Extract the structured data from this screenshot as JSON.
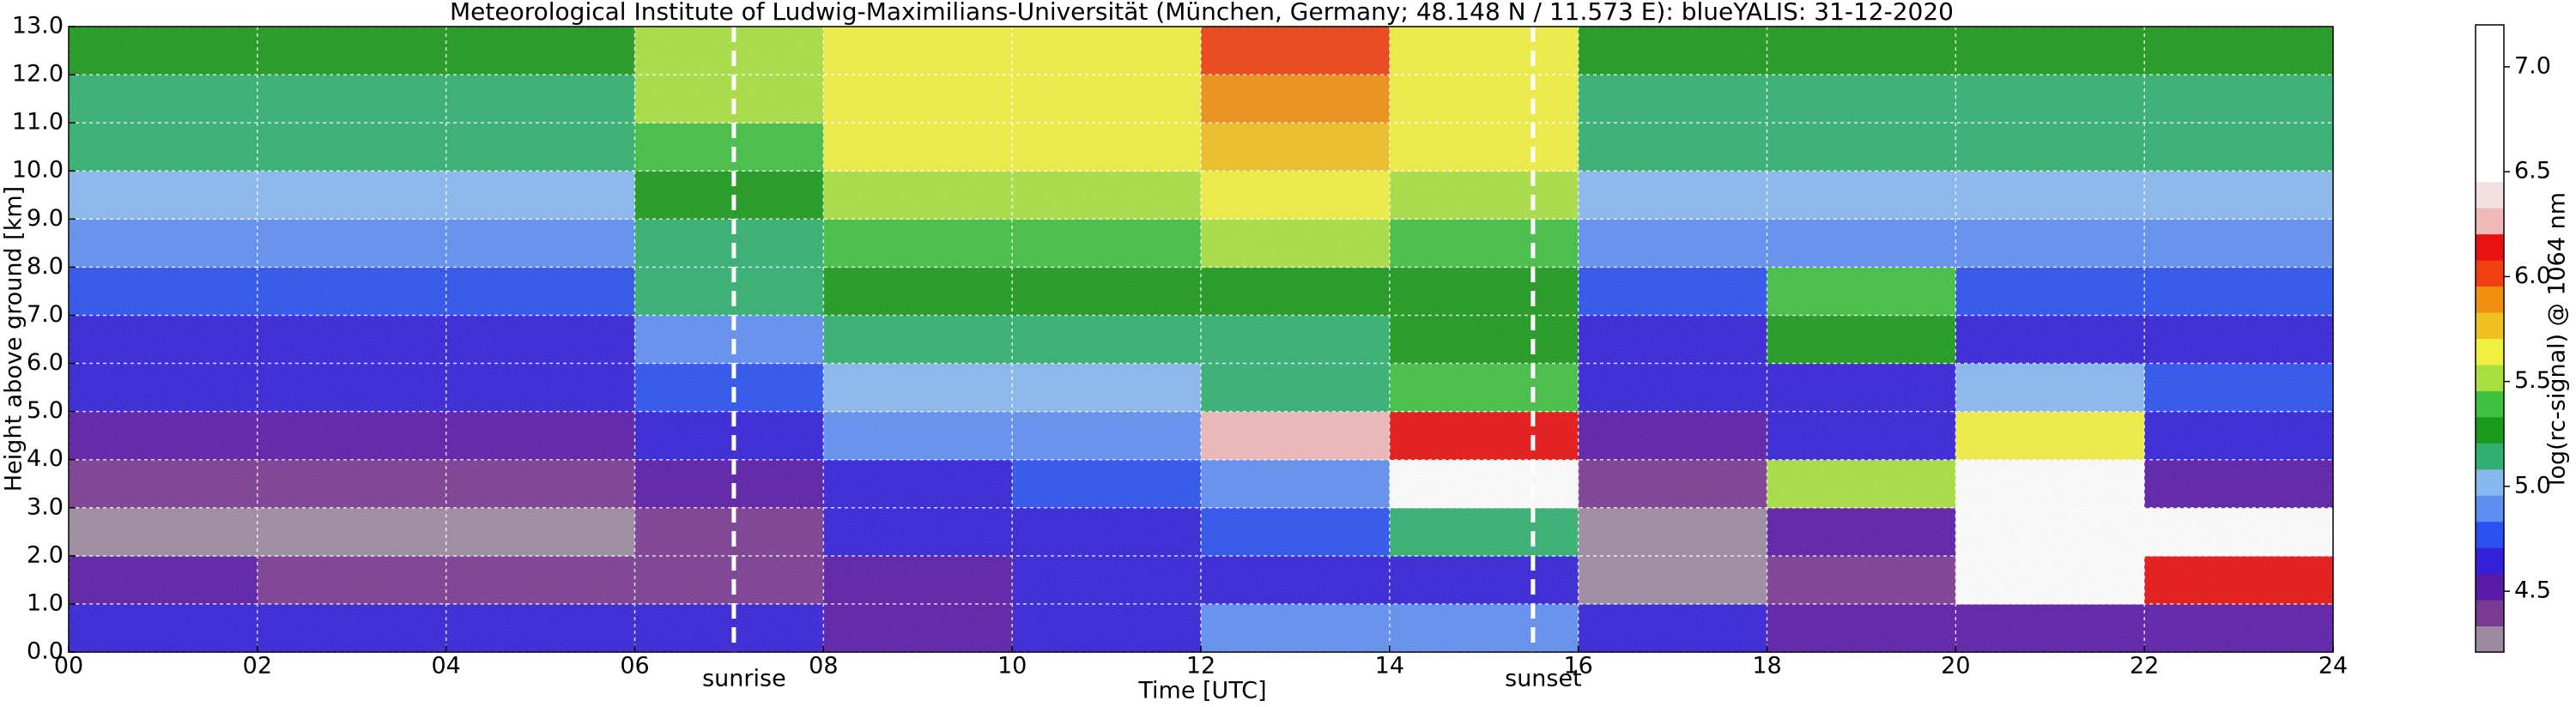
{
  "chart_data": {
    "type": "heatmap",
    "title": "Meteorological Institute of Ludwig-Maximilians-Universität (München, Germany; 48.148 N / 11.573 E):    blueYALIS: 31-12-2020",
    "x_label": "Time [UTC]",
    "y_label": "Height above ground [km]",
    "colorbar_label": "log(rc-signal) @ 1064 nm",
    "xlim": [
      0,
      24
    ],
    "ylim": [
      0,
      13
    ],
    "clim": [
      4.21,
      7.2
    ],
    "xticks": [
      {
        "value": 0,
        "label": "00"
      },
      {
        "value": 2,
        "label": "02"
      },
      {
        "value": 4,
        "label": "04"
      },
      {
        "value": 6,
        "label": "06"
      },
      {
        "value": 8,
        "label": "08"
      },
      {
        "value": 10,
        "label": "10"
      },
      {
        "value": 12,
        "label": "12"
      },
      {
        "value": 14,
        "label": "14"
      },
      {
        "value": 16,
        "label": "16"
      },
      {
        "value": 18,
        "label": "18"
      },
      {
        "value": 20,
        "label": "20"
      },
      {
        "value": 22,
        "label": "22"
      },
      {
        "value": 24,
        "label": "24"
      }
    ],
    "yticks": [
      {
        "value": 0,
        "label": "0.0"
      },
      {
        "value": 1,
        "label": "1.0"
      },
      {
        "value": 2,
        "label": "2.0"
      },
      {
        "value": 3,
        "label": "3.0"
      },
      {
        "value": 4,
        "label": "4.0"
      },
      {
        "value": 5,
        "label": "5.0"
      },
      {
        "value": 6,
        "label": "6.0"
      },
      {
        "value": 7,
        "label": "7.0"
      },
      {
        "value": 8,
        "label": "8.0"
      },
      {
        "value": 9,
        "label": "9.0"
      },
      {
        "value": 10,
        "label": "10.0"
      },
      {
        "value": 11,
        "label": "11.0"
      },
      {
        "value": 12,
        "label": "12.0"
      },
      {
        "value": 13,
        "label": "13.0"
      }
    ],
    "cticks": [
      4.5,
      {
        "value": 5,
        "label": "5.0"
      },
      5.5,
      {
        "value": 6,
        "label": "6.0"
      },
      6.5,
      {
        "value": 7,
        "label": "7.0"
      }
    ],
    "grid": true,
    "colormap": [
      "#9c8aa0",
      "#7b3a92",
      "#5a1aa8",
      "#3320d8",
      "#2a50f0",
      "#5f8ef2",
      "#88b8f0",
      "#30b070",
      "#1a9a1a",
      "#40c040",
      "#a8e040",
      "#f0f040",
      "#f0c020",
      "#f09010",
      "#f04010",
      "#e81010",
      "#f0b8b8",
      "#f0e0e0",
      "#ffffff",
      "#ffffff",
      "#ffffff",
      "#ffffff",
      "#ffffff",
      "#ffffff"
    ],
    "xbins": [
      0,
      2,
      4,
      6,
      8,
      10,
      12,
      14,
      16,
      18,
      20,
      22,
      24
    ],
    "ybins": [
      0,
      1,
      2,
      3,
      4,
      5,
      6,
      7,
      8,
      9,
      10,
      11,
      12,
      13
    ],
    "z": [
      [
        4.6,
        4.6,
        4.7,
        4.6,
        4.5,
        4.6,
        4.9,
        4.9,
        4.6,
        4.5,
        4.5,
        4.5
      ],
      [
        4.5,
        4.4,
        4.4,
        4.4,
        4.5,
        4.6,
        4.7,
        4.7,
        4.3,
        4.4,
        6.8,
        6.2
      ],
      [
        4.3,
        4.3,
        4.3,
        4.4,
        4.6,
        4.7,
        4.8,
        5.2,
        4.3,
        4.5,
        7.0,
        6.8
      ],
      [
        4.4,
        4.4,
        4.4,
        4.5,
        4.7,
        4.8,
        4.9,
        6.5,
        4.4,
        5.5,
        6.9,
        4.5
      ],
      [
        4.5,
        4.5,
        4.5,
        4.6,
        4.9,
        4.9,
        6.3,
        6.2,
        4.5,
        4.6,
        5.6,
        4.6
      ],
      [
        4.6,
        4.6,
        4.6,
        4.8,
        5.0,
        5.0,
        5.2,
        5.4,
        4.6,
        4.6,
        5.0,
        4.8
      ],
      [
        4.7,
        4.7,
        4.7,
        4.9,
        5.2,
        5.2,
        5.2,
        5.3,
        4.7,
        5.3,
        4.7,
        4.7
      ],
      [
        4.8,
        4.8,
        4.8,
        5.1,
        5.3,
        5.3,
        5.3,
        5.3,
        4.8,
        5.4,
        4.8,
        4.8
      ],
      [
        4.9,
        4.9,
        4.9,
        5.2,
        5.4,
        5.4,
        5.5,
        5.4,
        4.9,
        4.9,
        4.9,
        4.9
      ],
      [
        5.0,
        5.0,
        5.0,
        5.3,
        5.5,
        5.5,
        5.6,
        5.5,
        5.0,
        5.0,
        5.0,
        5.0
      ],
      [
        5.1,
        5.1,
        5.1,
        5.4,
        5.6,
        5.6,
        5.8,
        5.6,
        5.1,
        5.1,
        5.1,
        5.1
      ],
      [
        5.2,
        5.2,
        5.2,
        5.5,
        5.6,
        5.6,
        5.9,
        5.7,
        5.2,
        5.2,
        5.2,
        5.2
      ],
      [
        5.3,
        5.3,
        5.3,
        5.5,
        5.7,
        5.7,
        6.0,
        5.7,
        5.3,
        5.3,
        5.3,
        5.3
      ]
    ],
    "annotations": [
      {
        "text": "sunrise",
        "x": 7.05
      },
      {
        "text": "sunset",
        "x": 15.52
      }
    ]
  }
}
